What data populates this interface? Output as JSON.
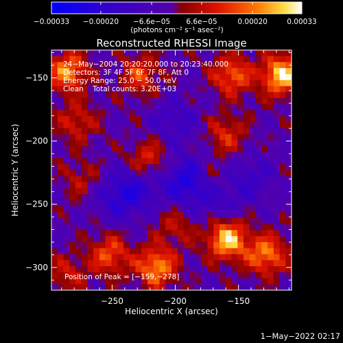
{
  "chart_data": {
    "type": "heatmap",
    "title": "Reconstructed RHESSI Image",
    "xlabel": "Heliocentric X (arcsec)",
    "ylabel": "Heliocentric Y (arcsec)",
    "xlim": [
      -298,
      -108
    ],
    "ylim": [
      -318,
      -128
    ],
    "x_ticks": [
      -250,
      -200,
      -150
    ],
    "x_tick_labels": [
      "−250",
      "−200",
      "−150"
    ],
    "y_ticks": [
      -150,
      -200,
      -250,
      -300
    ],
    "y_tick_labels": [
      "−150",
      "−200",
      "−250",
      "−300"
    ],
    "colorbar": {
      "range": [
        -0.00033,
        0.00033
      ],
      "ticks": [
        -0.00033,
        -0.0002,
        -6.6e-05,
        6.6e-05,
        0.0002,
        0.00033
      ],
      "tick_labels": [
        "−0.00033",
        "−0.00020",
        "−6.6e−05",
        "6.6e−05",
        "0.00020",
        "0.00033"
      ],
      "unit_label": "(photons cm⁻² s⁻¹ asec⁻²)"
    },
    "annotations": [
      "24−May−2004 20:20:20.000 to 20:23:40.000",
      "Detectors: 3F 4F 5F 6F 7F 8F, Att 0",
      "Energy Range: 25.0 − 50.0 keV",
      "Clean    Total counts: 3.20E+03"
    ],
    "peak_label": "Position of Peak = [−159,−278]",
    "peak_position": [
      -159,
      -278
    ],
    "grid": false,
    "colormap": [
      "#0000ff",
      "#3300cc",
      "#5500aa",
      "#cc0000",
      "#ff4400",
      "#ffaa00",
      "#ffffff"
    ],
    "grid_size": [
      40,
      40
    ],
    "hotspots": [
      {
        "x": -116,
        "y": -148,
        "value": 0.00033
      },
      {
        "x": -155,
        "y": -148,
        "value": 0.00022
      },
      {
        "x": -285,
        "y": -145,
        "value": 0.00026
      },
      {
        "x": -228,
        "y": -148,
        "value": 0.00018
      },
      {
        "x": -278,
        "y": -185,
        "value": 0.00014
      },
      {
        "x": -160,
        "y": -195,
        "value": 0.00015
      },
      {
        "x": -222,
        "y": -215,
        "value": 0.00017
      },
      {
        "x": -172,
        "y": -232,
        "value": 0.00012
      },
      {
        "x": -275,
        "y": -230,
        "value": 0.0001
      },
      {
        "x": -215,
        "y": -300,
        "value": 0.00027
      },
      {
        "x": -252,
        "y": -290,
        "value": 0.0002
      },
      {
        "x": -159,
        "y": -278,
        "value": 0.00032
      },
      {
        "x": -128,
        "y": -290,
        "value": 0.00025
      },
      {
        "x": -285,
        "y": -305,
        "value": 0.00012
      },
      {
        "x": -200,
        "y": -268,
        "value": 0.00011
      }
    ],
    "coldspots": [
      {
        "x": -190,
        "y": -232,
        "value": -0.00021
      },
      {
        "x": -168,
        "y": -245,
        "value": -0.00012
      },
      {
        "x": -245,
        "y": -245,
        "value": -0.00014
      },
      {
        "x": -200,
        "y": -185,
        "value": -0.0001
      },
      {
        "x": -140,
        "y": -230,
        "value": -0.0001
      },
      {
        "x": -228,
        "y": -235,
        "value": -0.00011
      }
    ]
  },
  "footer": {
    "timestamp": "1−May−2022 02:17"
  }
}
